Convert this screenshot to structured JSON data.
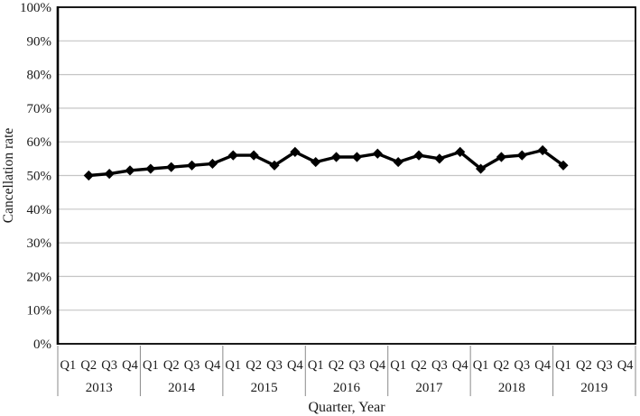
{
  "figure": {
    "background": "#ffffff",
    "axis_color": "#000000"
  },
  "chart_data": {
    "type": "line",
    "title": "",
    "xlabel": "Quarter, Year",
    "ylabel": "Cancellation rate",
    "ylim": [
      0,
      100
    ],
    "y_tick_values": [
      0,
      10,
      20,
      30,
      40,
      50,
      60,
      70,
      80,
      90,
      100
    ],
    "y_tick_labels": [
      "0%",
      "10%",
      "20%",
      "30%",
      "40%",
      "50%",
      "60%",
      "70%",
      "80%",
      "90%",
      "100%"
    ],
    "grid": "horizontal",
    "legend": "none",
    "marker": "diamond",
    "line_color": "#000000",
    "grid_color": "#c6c6c6",
    "years": [
      "2013",
      "2014",
      "2015",
      "2016",
      "2017",
      "2018",
      "2019"
    ],
    "quarters": [
      "Q1",
      "Q2",
      "Q3",
      "Q4"
    ],
    "series": [
      {
        "name": "Cancellation rate",
        "values": [
          null,
          50,
          50.5,
          51.5,
          52,
          52.5,
          53,
          53.5,
          56,
          56,
          53,
          57,
          54,
          55.5,
          55.5,
          56.5,
          54,
          56,
          55,
          57,
          52,
          55.5,
          56,
          57.5,
          53,
          null,
          null,
          null
        ]
      }
    ]
  }
}
